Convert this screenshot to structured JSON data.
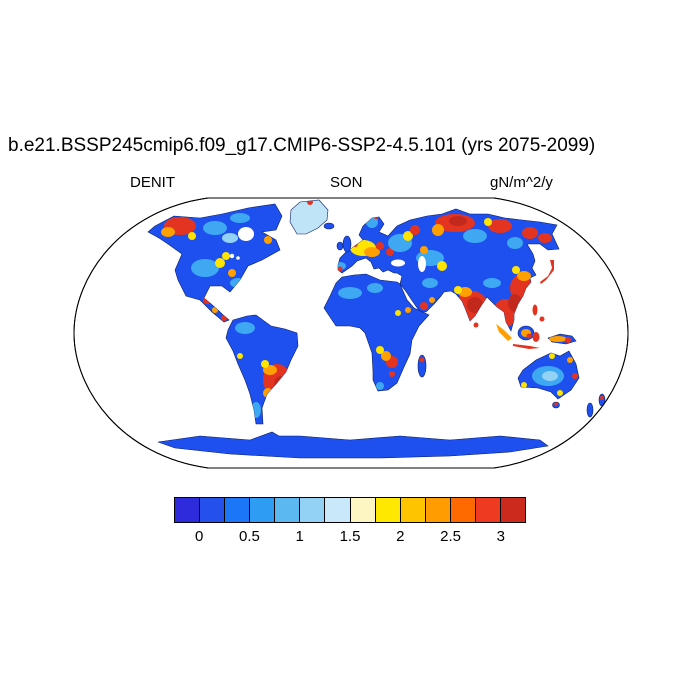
{
  "header": {
    "title": "b.e21.BSSP245cmip6.f09_g17.CMIP6-SSP2-4.5.101 (yrs 2075-2099)",
    "left_label": "DENIT",
    "center_label": "SON",
    "units_label": "gN/m^2/y"
  },
  "chart_data": {
    "type": "heatmap",
    "subtype": "global-map-filled-contours",
    "projection": "robinson",
    "title": "b.e21.BSSP245cmip6.f09_g17.CMIP6-SSP2-4.5.101 (yrs 2075-2099)",
    "variable": "DENIT",
    "season": "SON",
    "units": "gN/m^2/y",
    "colorbar": {
      "orientation": "horizontal",
      "tick_labels": [
        "0",
        "0.5",
        "1",
        "1.5",
        "2",
        "2.5",
        "3"
      ],
      "level_step_estimate": 0.25,
      "range_estimate": [
        0,
        3.25
      ],
      "cell_colors": [
        "#2e2bdc",
        "#2451ec",
        "#1b76f8",
        "#2f9cf4",
        "#5cb8f0",
        "#93d2f4",
        "#c9e8fa",
        "#fdf5c2",
        "#ffe800",
        "#ffc400",
        "#ff9c00",
        "#ff6a00",
        "#ee3a21",
        "#cc2a1d"
      ]
    },
    "high_value_regions": [
      "Alaska / Yukon",
      "central and eastern Siberia",
      "central and eastern Europe",
      "India",
      "Southeast Asia and eastern China",
      "Japan",
      "southeastern South America",
      "southern Africa",
      "Indonesia and New Guinea",
      "Mexico / Central America"
    ],
    "low_value_regions": [
      "Amazon basin",
      "Sahara",
      "central Canada",
      "Arabian Peninsula",
      "Australian interior",
      "Greenland",
      "Antarctica"
    ],
    "background": "white oceans, land colored by denitrification flux"
  }
}
